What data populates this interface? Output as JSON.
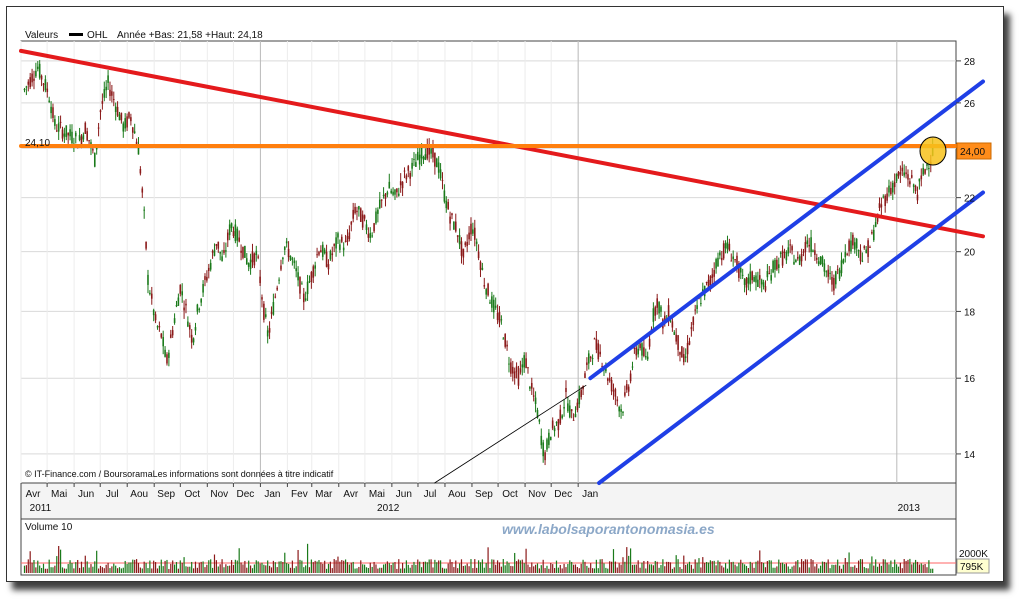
{
  "header": {
    "values_label": "Valeurs",
    "ticker": "OHL",
    "range_text": "Année +Bas: 21,58 +Haut: 24,18"
  },
  "price_chart": {
    "chart_data": {
      "type": "candlestick",
      "title": "",
      "xlabel": "",
      "ylabel": "",
      "ylim": [
        13.3,
        29.0
      ],
      "scale": "log",
      "y_ticks": [
        14,
        16,
        18,
        20,
        22,
        24,
        26,
        28
      ],
      "y_tick_labels": [
        "14",
        "16",
        "18",
        "20",
        "22",
        "24",
        "26",
        "28"
      ],
      "x_month_labels": [
        "Avr",
        "Mai",
        "Jun",
        "Jul",
        "Aou",
        "Sep",
        "Oct",
        "Nov",
        "Dec",
        "Jan",
        "Fev",
        "Mar",
        "Avr",
        "Mai",
        "Jun",
        "Jul",
        "Aou",
        "Sep",
        "Oct",
        "Nov",
        "Dec",
        "Jan"
      ],
      "x_year_labels": [
        "2011",
        "2012",
        "2013"
      ],
      "grid": true,
      "series": [
        {
          "points": [
            [
              "2010-04-05",
              26.6
            ],
            [
              "2010-04-20",
              27.7
            ],
            [
              "2010-05-03",
              26.4
            ],
            [
              "2010-05-10",
              25.0
            ],
            [
              "2010-05-25",
              24.6
            ],
            [
              "2010-06-07",
              24.3
            ],
            [
              "2010-06-14",
              24.9
            ],
            [
              "2010-06-25",
              23.5
            ],
            [
              "2010-07-01",
              25.6
            ],
            [
              "2010-07-10",
              26.9
            ],
            [
              "2010-07-20",
              25.8
            ],
            [
              "2010-07-28",
              24.9
            ],
            [
              "2010-08-05",
              25.4
            ],
            [
              "2010-08-14",
              24.0
            ],
            [
              "2010-08-20",
              21.5
            ],
            [
              "2010-08-25",
              19.0
            ],
            [
              "2010-09-03",
              17.6
            ],
            [
              "2010-09-10",
              17.2
            ],
            [
              "2010-09-15",
              16.4
            ],
            [
              "2010-09-22",
              17.4
            ],
            [
              "2010-10-01",
              18.8
            ],
            [
              "2010-10-08",
              18.0
            ],
            [
              "2010-10-15",
              17.1
            ],
            [
              "2010-10-22",
              18.2
            ],
            [
              "2010-11-03",
              19.4
            ],
            [
              "2010-11-12",
              20.4
            ],
            [
              "2010-11-19",
              19.6
            ],
            [
              "2010-11-28",
              21.0
            ],
            [
              "2010-12-08",
              20.4
            ],
            [
              "2010-12-18",
              19.6
            ],
            [
              "2010-12-28",
              19.9
            ],
            [
              "2011-01-05",
              18.0
            ],
            [
              "2011-01-10",
              17.2
            ],
            [
              "2011-01-20",
              18.8
            ],
            [
              "2011-01-28",
              20.2
            ],
            [
              "2011-02-03",
              20.0
            ],
            [
              "2011-02-12",
              19.2
            ],
            [
              "2011-02-20",
              18.4
            ],
            [
              "2011-03-01",
              19.2
            ],
            [
              "2011-03-10",
              20.2
            ],
            [
              "2011-03-20",
              19.6
            ],
            [
              "2011-03-31",
              20.4
            ],
            [
              "2011-04-10",
              20.2
            ],
            [
              "2011-04-20",
              21.6
            ],
            [
              "2011-04-28",
              21.2
            ],
            [
              "2011-05-08",
              20.6
            ],
            [
              "2011-05-18",
              21.6
            ],
            [
              "2011-05-28",
              22.4
            ],
            [
              "2011-06-05",
              22.0
            ],
            [
              "2011-06-15",
              22.8
            ],
            [
              "2011-06-25",
              23.2
            ],
            [
              "2011-07-05",
              23.8
            ],
            [
              "2011-07-12",
              23.9
            ],
            [
              "2011-07-20",
              23.6
            ],
            [
              "2011-07-25",
              23.2
            ],
            [
              "2011-08-01",
              22.0
            ],
            [
              "2011-08-08",
              21.2
            ],
            [
              "2011-08-15",
              20.8
            ],
            [
              "2011-08-22",
              19.8
            ],
            [
              "2011-09-01",
              21.0
            ],
            [
              "2011-09-06",
              20.4
            ],
            [
              "2011-09-15",
              19.0
            ],
            [
              "2011-09-25",
              18.2
            ],
            [
              "2011-10-05",
              17.6
            ],
            [
              "2011-10-15",
              16.4
            ],
            [
              "2011-10-25",
              16.0
            ],
            [
              "2011-11-01",
              16.6
            ],
            [
              "2011-11-08",
              15.7
            ],
            [
              "2011-11-15",
              15.1
            ],
            [
              "2011-11-21",
              14.2
            ],
            [
              "2011-11-24",
              14.0
            ],
            [
              "2011-12-01",
              14.6
            ],
            [
              "2011-12-10",
              14.8
            ],
            [
              "2011-12-18",
              15.5
            ],
            [
              "2011-12-25",
              14.9
            ],
            [
              "2012-01-05",
              15.6
            ],
            [
              "2012-01-12",
              16.4
            ],
            [
              "2012-01-20",
              17.0
            ],
            [
              "2012-01-28",
              16.6
            ],
            [
              "2012-02-05",
              16.0
            ],
            [
              "2012-02-12",
              15.6
            ],
            [
              "2012-02-20",
              15.1
            ],
            [
              "2012-02-28",
              15.8
            ],
            [
              "2012-03-05",
              16.6
            ],
            [
              "2012-03-12",
              17.0
            ],
            [
              "2012-03-20",
              16.4
            ],
            [
              "2012-03-25",
              17.6
            ],
            [
              "2012-04-01",
              18.4
            ],
            [
              "2012-04-08",
              17.6
            ],
            [
              "2012-04-15",
              18.0
            ],
            [
              "2012-04-20",
              17.4
            ],
            [
              "2012-04-28",
              16.8
            ],
            [
              "2012-05-02",
              16.4
            ],
            [
              "2012-05-10",
              17.4
            ],
            [
              "2012-05-20",
              18.4
            ],
            [
              "2012-06-01",
              19.0
            ],
            [
              "2012-06-10",
              19.8
            ],
            [
              "2012-06-20",
              20.2
            ],
            [
              "2012-07-01",
              19.6
            ],
            [
              "2012-07-10",
              18.8
            ],
            [
              "2012-07-20",
              19.2
            ],
            [
              "2012-08-01",
              18.8
            ],
            [
              "2012-08-15",
              19.6
            ],
            [
              "2012-09-01",
              20.0
            ],
            [
              "2012-09-10",
              19.6
            ],
            [
              "2012-09-20",
              20.4
            ],
            [
              "2012-10-01",
              20.0
            ],
            [
              "2012-10-10",
              19.4
            ],
            [
              "2012-10-20",
              18.9
            ],
            [
              "2012-10-28",
              19.4
            ],
            [
              "2012-11-05",
              20.2
            ],
            [
              "2012-11-15",
              20.4
            ],
            [
              "2012-11-22",
              19.8
            ],
            [
              "2012-12-01",
              20.2
            ],
            [
              "2012-12-08",
              21.0
            ],
            [
              "2012-12-15",
              21.8
            ],
            [
              "2012-12-22",
              22.2
            ],
            [
              "2013-01-02",
              22.8
            ],
            [
              "2013-01-10",
              23.0
            ],
            [
              "2013-01-18",
              22.6
            ],
            [
              "2013-01-25",
              22.2
            ],
            [
              "2013-02-01",
              23.0
            ],
            [
              "2013-02-08",
              23.6
            ],
            [
              "2013-02-13",
              24.0
            ]
          ]
        }
      ],
      "lines": [
        {
          "name": "",
          "color": "#e41a1c",
          "from": [
            "2010-04-01",
            28.5
          ],
          "to": [
            "2013-04-10",
            20.55
          ]
        },
        {
          "name": "",
          "color": "#ff7f0e",
          "from": [
            "2010-04-01",
            24.1
          ],
          "to": [
            "2013-03-10",
            24.1
          ]
        },
        {
          "name": "",
          "color": "#1f3fe6",
          "from": [
            "2012-01-15",
            16.0
          ],
          "to": [
            "2013-04-10",
            27.0
          ]
        },
        {
          "name": "",
          "color": "#1f3fe6",
          "from": [
            "2012-01-25",
            13.3
          ],
          "to": [
            "2013-04-10",
            22.2
          ]
        },
        {
          "name": "",
          "color": "#000000",
          "from": [
            "2011-07-20",
            13.3
          ],
          "to": [
            "2012-01-10",
            15.8
          ]
        }
      ],
      "annotations": {
        "left_level": "24,10",
        "right_level": "24,00",
        "copyright": "© IT-Finance.com / BoursoramaLes informations sont données à titre indicatif"
      },
      "colors": {
        "up": "#1a7a1a",
        "down": "#8b1a1a"
      }
    }
  },
  "volume_chart": {
    "label": "Volume 10",
    "tick_2000k": "2000K",
    "last_value": "795K"
  },
  "watermark": "www.labolsaporantonomasia.es"
}
